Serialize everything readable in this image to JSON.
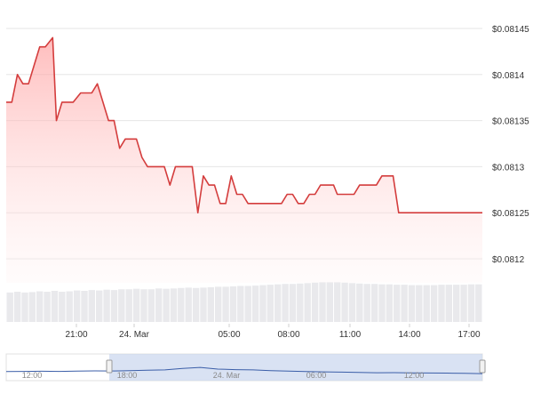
{
  "chart_data": {
    "type": "area",
    "title": "",
    "xlabel": "",
    "ylabel": "",
    "ylim": [
      0.08118,
      0.08146
    ],
    "x_ticks": [
      "21:00",
      "24. Mar",
      "05:00",
      "08:00",
      "11:00",
      "14:00",
      "17:00"
    ],
    "y_ticks": [
      {
        "value": 0.08145,
        "label": "$0.08145"
      },
      {
        "value": 0.0814,
        "label": "$0.0814"
      },
      {
        "value": 0.08135,
        "label": "$0.08135"
      },
      {
        "value": 0.0813,
        "label": "$0.0813"
      },
      {
        "value": 0.08125,
        "label": "$0.08125"
      },
      {
        "value": 0.0812,
        "label": "$0.0812"
      }
    ],
    "grid": true,
    "line_color": "#d43d3d",
    "fill_color_top": "#ff9a9a",
    "fill_color_bottom": "#fff1f1",
    "price_series": {
      "x_hours": [
        0,
        0.3,
        0.6,
        0.9,
        1.2,
        1.5,
        1.8,
        2.1,
        2.5,
        2.7,
        3.0,
        3.3,
        3.6,
        4.0,
        4.3,
        4.6,
        4.9,
        5.2,
        5.5,
        5.8,
        6.1,
        6.4,
        6.7,
        7.0,
        7.3,
        7.6,
        7.9,
        8.2,
        8.5,
        8.8,
        9.1,
        9.4,
        9.7,
        10.0,
        10.3,
        10.6,
        10.9,
        11.2,
        11.5,
        11.8,
        12.1,
        12.4,
        12.7,
        13.0,
        13.3,
        13.6,
        13.9,
        14.2,
        14.5,
        14.8,
        15.1,
        15.4,
        15.7,
        16.0,
        16.3,
        16.6,
        16.9,
        17.2,
        17.4,
        17.6,
        17.8,
        18.1,
        18.4,
        18.7,
        19.0,
        19.3,
        19.6,
        19.9,
        20.2,
        20.5,
        20.8,
        21.1,
        21.4,
        21.7,
        22.0,
        22.3,
        22.6,
        22.9,
        23.2,
        23.5,
        23.8,
        24.1,
        24.4,
        24.6,
        24.8,
        25.0,
        25.2,
        25.4,
        25.6
      ],
      "y": [
        0.08137,
        0.08137,
        0.0814,
        0.08139,
        0.08139,
        0.08141,
        0.08143,
        0.08143,
        0.08144,
        0.08135,
        0.08137,
        0.08137,
        0.08137,
        0.08138,
        0.08138,
        0.08138,
        0.08139,
        0.08137,
        0.08135,
        0.08135,
        0.08132,
        0.08133,
        0.08133,
        0.08133,
        0.08131,
        0.0813,
        0.0813,
        0.0813,
        0.0813,
        0.08128,
        0.0813,
        0.0813,
        0.0813,
        0.0813,
        0.08125,
        0.08129,
        0.08128,
        0.08128,
        0.08126,
        0.08126,
        0.08129,
        0.08127,
        0.08127,
        0.08126,
        0.08126,
        0.08126,
        0.08126,
        0.08126,
        0.08126,
        0.08126,
        0.08127,
        0.08127,
        0.08126,
        0.08126,
        0.08127,
        0.08127,
        0.08128,
        0.08128,
        0.08128,
        0.08128,
        0.08127,
        0.08127,
        0.08127,
        0.08127,
        0.08128,
        0.08128,
        0.08128,
        0.08128,
        0.08129,
        0.08129,
        0.08129,
        0.08125,
        0.08125,
        0.08125,
        0.08125,
        0.08125,
        0.08125,
        0.08125,
        0.08125,
        0.08125,
        0.08125,
        0.08125,
        0.08125,
        0.08125,
        0.08125,
        0.08125,
        0.08125,
        0.08125,
        0.08125
      ]
    },
    "volume_series": {
      "values": [
        0.72,
        0.74,
        0.72,
        0.73,
        0.75,
        0.74,
        0.76,
        0.74,
        0.75,
        0.77,
        0.76,
        0.78,
        0.77,
        0.79,
        0.78,
        0.8,
        0.8,
        0.81,
        0.8,
        0.8,
        0.82,
        0.81,
        0.82,
        0.83,
        0.84,
        0.83,
        0.84,
        0.85,
        0.86,
        0.86,
        0.87,
        0.88,
        0.88,
        0.89,
        0.9,
        0.91,
        0.92,
        0.93,
        0.93,
        0.94,
        0.95,
        0.96,
        0.97,
        0.97,
        0.97,
        0.96,
        0.95,
        0.94,
        0.93,
        0.93,
        0.92,
        0.92,
        0.91,
        0.91,
        0.9,
        0.9,
        0.9,
        0.9,
        0.91,
        0.91,
        0.91,
        0.91,
        0.92,
        0.92
      ]
    },
    "navigator": {
      "x_ticks": [
        "12:00",
        "18:00",
        "24. Mar",
        "06:00",
        "12:00"
      ],
      "series": [
        0.45,
        0.46,
        0.47,
        0.46,
        0.48,
        0.5,
        0.49,
        0.52,
        0.56,
        0.58,
        0.7,
        0.78,
        0.64,
        0.6,
        0.58,
        0.52,
        0.48,
        0.45,
        0.42,
        0.4,
        0.38,
        0.35,
        0.36,
        0.34,
        0.33,
        0.32,
        0.3,
        0.28
      ]
    }
  }
}
